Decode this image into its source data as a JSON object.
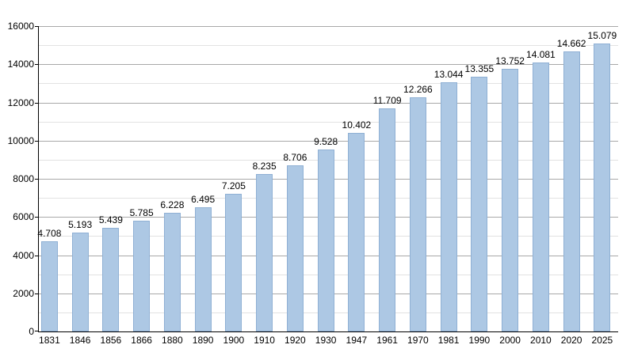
{
  "chart_data": {
    "type": "bar",
    "title": "",
    "xlabel": "",
    "ylabel": "",
    "categories": [
      "1831",
      "1846",
      "1856",
      "1866",
      "1880",
      "1890",
      "1900",
      "1910",
      "1920",
      "1930",
      "1947",
      "1961",
      "1970",
      "1981",
      "1990",
      "2000",
      "2010",
      "2020",
      "2025"
    ],
    "values": [
      4708,
      5193,
      5439,
      5785,
      6228,
      6495,
      7205,
      8235,
      8706,
      9528,
      10402,
      11709,
      12266,
      13044,
      13355,
      13752,
      14081,
      14662,
      15079
    ],
    "value_labels": [
      "4.708",
      "5.193",
      "5.439",
      "5.785",
      "6.228",
      "6.495",
      "7.205",
      "8.235",
      "8.706",
      "9.528",
      "10.402",
      "11.709",
      "12.266",
      "13.044",
      "13.355",
      "13.752",
      "14.081",
      "14.662",
      "15.079"
    ],
    "ylim": [
      0,
      16000
    ],
    "y_major_ticks": [
      0,
      2000,
      4000,
      6000,
      8000,
      10000,
      12000,
      14000,
      16000
    ],
    "y_major_tick_labels": [
      "0",
      "2000",
      "4000",
      "6000",
      "8000",
      "10000",
      "12000",
      "14000",
      "16000"
    ],
    "y_minor_ticks": [
      1000,
      3000,
      5000,
      7000,
      9000,
      11000,
      13000,
      15000
    ],
    "grid": true,
    "legend_position": "none",
    "colors": {
      "bar_fill": "#adc8e4",
      "bar_border": "#8fb0d4",
      "major_grid": "#a8a8a8",
      "minor_grid": "#e2e2e2",
      "axis": "#000000",
      "text": "#000000",
      "background": "#ffffff"
    }
  }
}
